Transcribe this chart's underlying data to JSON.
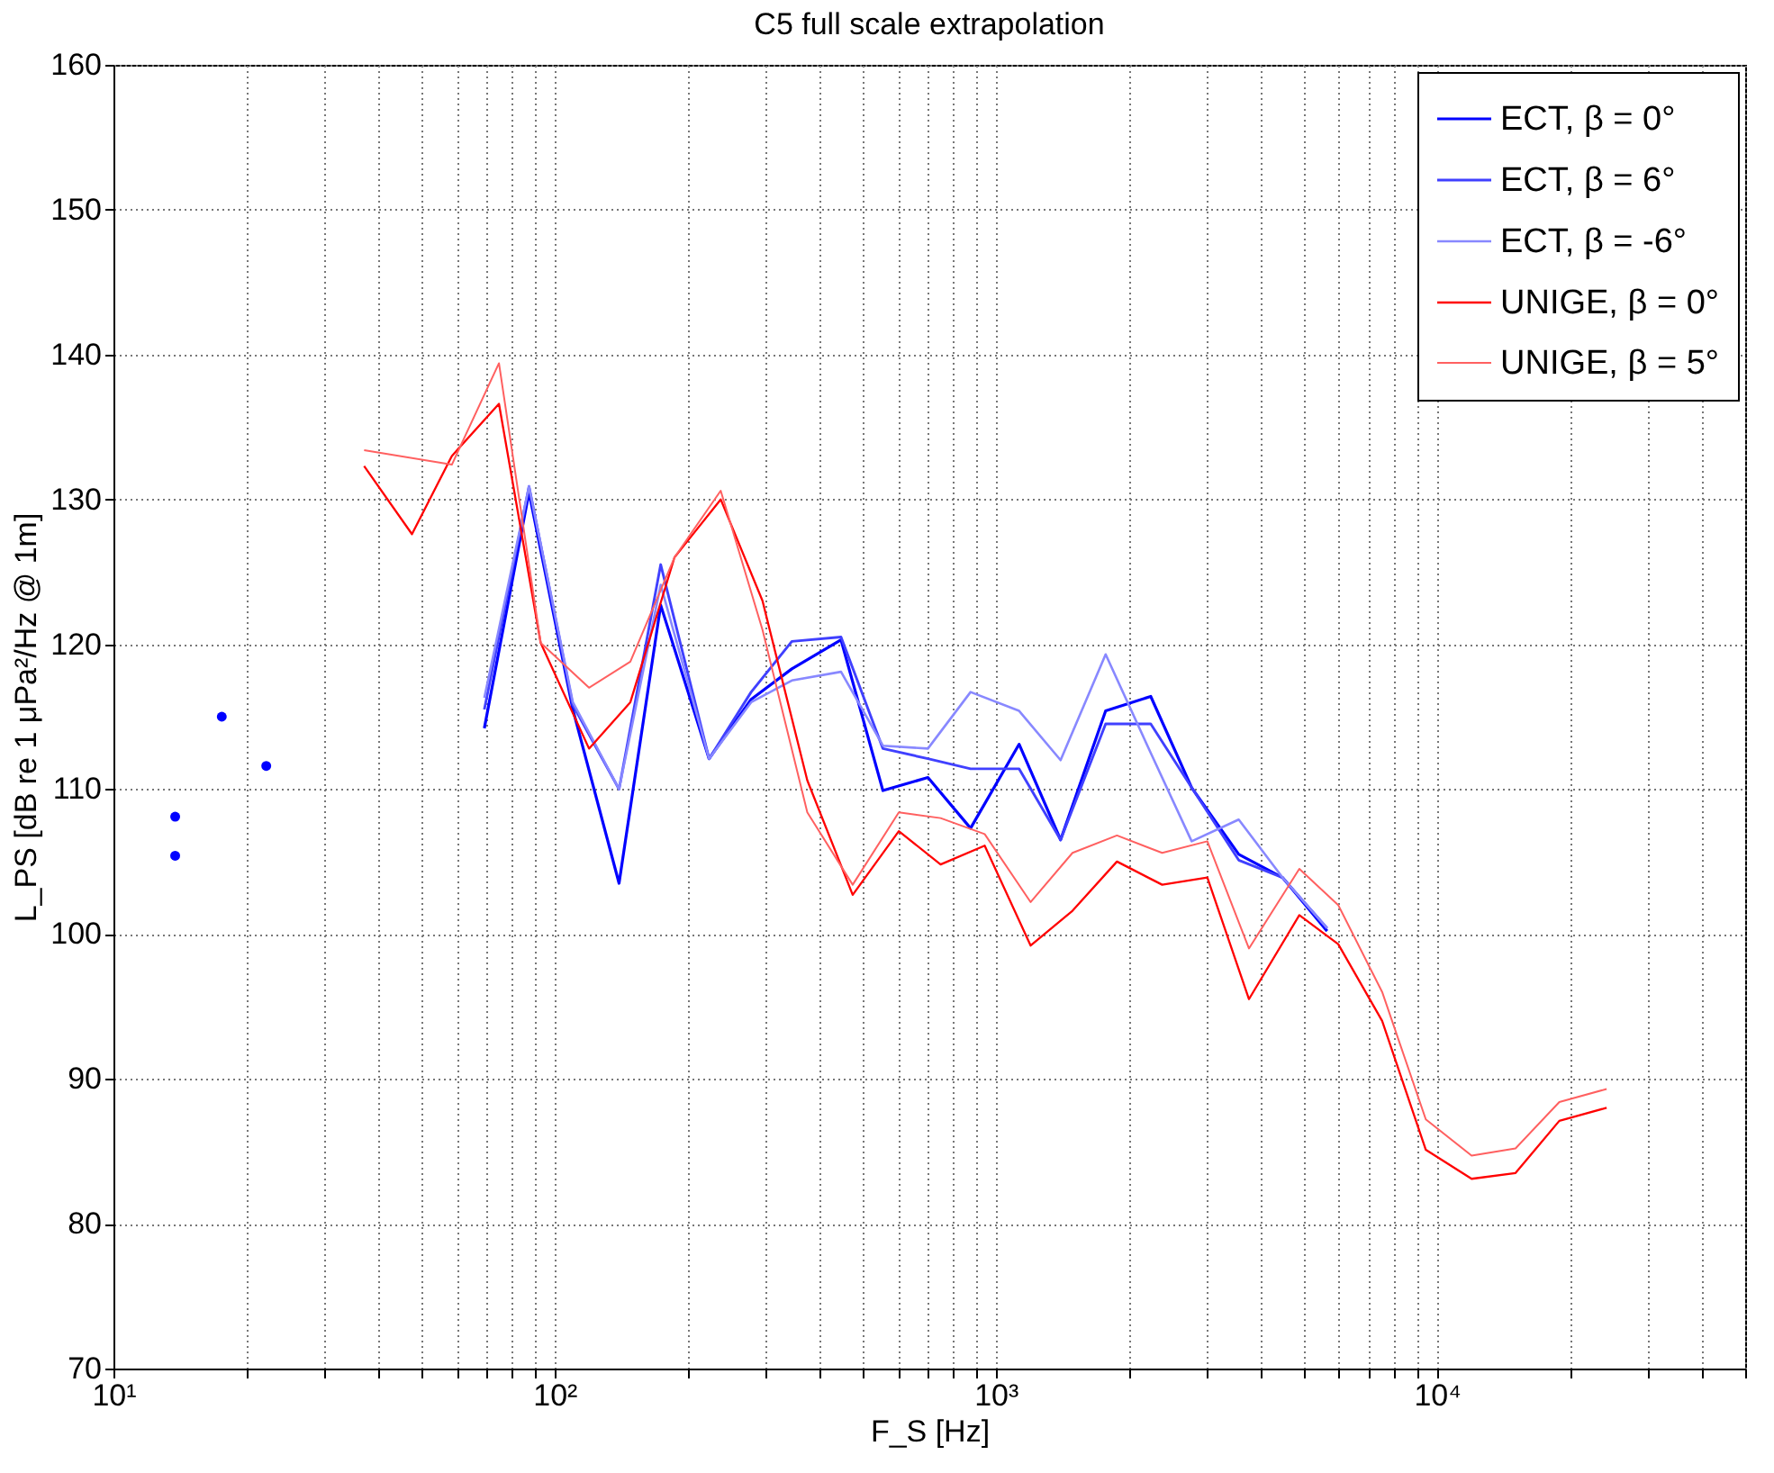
{
  "chart_data": {
    "type": "line",
    "title": "C5 full scale extrapolation",
    "xlabel": "F_S [Hz]",
    "ylabel": "L_PS [dB re 1 μPa²/Hz @ 1m]",
    "log": "x",
    "grid": true,
    "legend": "top right",
    "line_style": "solid",
    "xlim": [
      10,
      50000
    ],
    "ylim": [
      70,
      160
    ],
    "xticks": [
      {
        "value": 10,
        "label": "10¹"
      },
      {
        "value": 20,
        "label": null
      },
      {
        "value": 30,
        "label": null
      },
      {
        "value": 40,
        "label": null
      },
      {
        "value": 50,
        "label": null
      },
      {
        "value": 60,
        "label": null
      },
      {
        "value": 70,
        "label": null
      },
      {
        "value": 80,
        "label": null
      },
      {
        "value": 90,
        "label": null
      },
      {
        "value": 100,
        "label": "10²"
      },
      {
        "value": 200,
        "label": null
      },
      {
        "value": 300,
        "label": null
      },
      {
        "value": 400,
        "label": null
      },
      {
        "value": 500,
        "label": null
      },
      {
        "value": 600,
        "label": null
      },
      {
        "value": 700,
        "label": null
      },
      {
        "value": 800,
        "label": null
      },
      {
        "value": 900,
        "label": null
      },
      {
        "value": 1000,
        "label": "10³"
      },
      {
        "value": 2000,
        "label": null
      },
      {
        "value": 3000,
        "label": null
      },
      {
        "value": 4000,
        "label": null
      },
      {
        "value": 5000,
        "label": null
      },
      {
        "value": 6000,
        "label": null
      },
      {
        "value": 7000,
        "label": null
      },
      {
        "value": 8000,
        "label": null
      },
      {
        "value": 9000,
        "label": null
      },
      {
        "value": 10000,
        "label": "10⁴"
      },
      {
        "value": 20000,
        "label": null
      },
      {
        "value": 30000,
        "label": null
      },
      {
        "value": 40000,
        "label": null
      },
      {
        "value": 50000,
        "label": null
      }
    ],
    "yticks": [
      70,
      80,
      90,
      100,
      110,
      120,
      130,
      140,
      150,
      160
    ],
    "series": [
      {
        "name": "ECT, β = 0°",
        "color": "#0000ff",
        "x": [
          69.3,
          87.5,
          110,
          140,
          174,
          224,
          279,
          345,
          446,
          555,
          702,
          877,
          1130,
          1403,
          1775,
          2246,
          2781,
          3555,
          4467,
          5640
        ],
        "values": [
          114.2,
          130.5,
          115.5,
          103.5,
          122.7,
          112.1,
          116.2,
          118.3,
          120.3,
          109.9,
          110.8,
          107.3,
          113.1,
          106.5,
          115.4,
          116.4,
          110.1,
          105.5,
          103.9,
          100.2
        ]
      },
      {
        "name": "ECT, β = 6°",
        "color": "#4040ff",
        "x": [
          69.3,
          87.5,
          110,
          140,
          174,
          224,
          279,
          345,
          446,
          555,
          702,
          877,
          1130,
          1403,
          1775,
          2246,
          2781,
          3555,
          4467,
          5640
        ],
        "values": [
          115.5,
          130.9,
          115.8,
          110.0,
          125.5,
          112.1,
          116.7,
          120.2,
          120.5,
          112.8,
          112.1,
          111.4,
          111.4,
          106.5,
          114.5,
          114.5,
          110.1,
          105.1,
          103.9,
          100.4
        ]
      },
      {
        "name": "ECT, β = -6°",
        "color": "#8888ff",
        "x": [
          69.3,
          87.5,
          110,
          140,
          174,
          224,
          279,
          345,
          446,
          555,
          702,
          877,
          1130,
          1403,
          1775,
          2246,
          2781,
          3555,
          4467,
          5640
        ],
        "values": [
          116.3,
          130.9,
          116.0,
          110.0,
          124.1,
          112.1,
          116.0,
          117.5,
          118.1,
          113.0,
          112.8,
          116.7,
          115.4,
          112.0,
          119.3,
          112.5,
          106.4,
          107.9,
          103.9,
          100.4
        ]
      },
      {
        "name": "UNIGE, β = 0°",
        "color": "#ff0000",
        "x": [
          37,
          47.5,
          58.5,
          74.8,
          93,
          119.7,
          148.5,
          187,
          238,
          296,
          374,
          474,
          603,
          750,
          944,
          1200,
          1493,
          1883,
          2384,
          3018,
          3750,
          4878,
          5976,
          7516,
          9440,
          11990,
          15080,
          18950,
          24260
        ],
        "values": [
          132.3,
          127.6,
          133.0,
          136.6,
          120.1,
          112.8,
          116.0,
          126.0,
          130.0,
          123.0,
          110.6,
          102.7,
          107.1,
          104.8,
          106.1,
          99.2,
          101.6,
          105.0,
          103.4,
          103.9,
          95.5,
          101.3,
          99.3,
          94.0,
          85.1,
          83.1,
          83.5,
          87.1,
          88.0
        ]
      },
      {
        "name": "UNIGE, β = 5°",
        "color": "#ff6060",
        "x": [
          37,
          58.5,
          74.8,
          93,
          119.7,
          148.5,
          187,
          238,
          296,
          374,
          474,
          603,
          750,
          944,
          1200,
          1493,
          1883,
          2384,
          3018,
          3750,
          4878,
          5976,
          7516,
          9440,
          11990,
          15080,
          18950,
          24260
        ],
        "values": [
          133.4,
          132.4,
          139.4,
          120.1,
          117.0,
          118.8,
          126.0,
          130.6,
          121.0,
          108.4,
          103.4,
          108.4,
          108.0,
          106.9,
          102.2,
          105.6,
          106.8,
          105.6,
          106.4,
          99.0,
          104.5,
          102.0,
          96.0,
          87.2,
          84.7,
          85.2,
          88.4,
          89.3
        ]
      },
      {
        "type": "scatter",
        "marker": "circle",
        "color": "#0000ff",
        "x": [
          13.8,
          13.8,
          17.6,
          22.2
        ],
        "values": [
          108.1,
          105.4,
          115.0,
          111.6
        ]
      }
    ]
  }
}
